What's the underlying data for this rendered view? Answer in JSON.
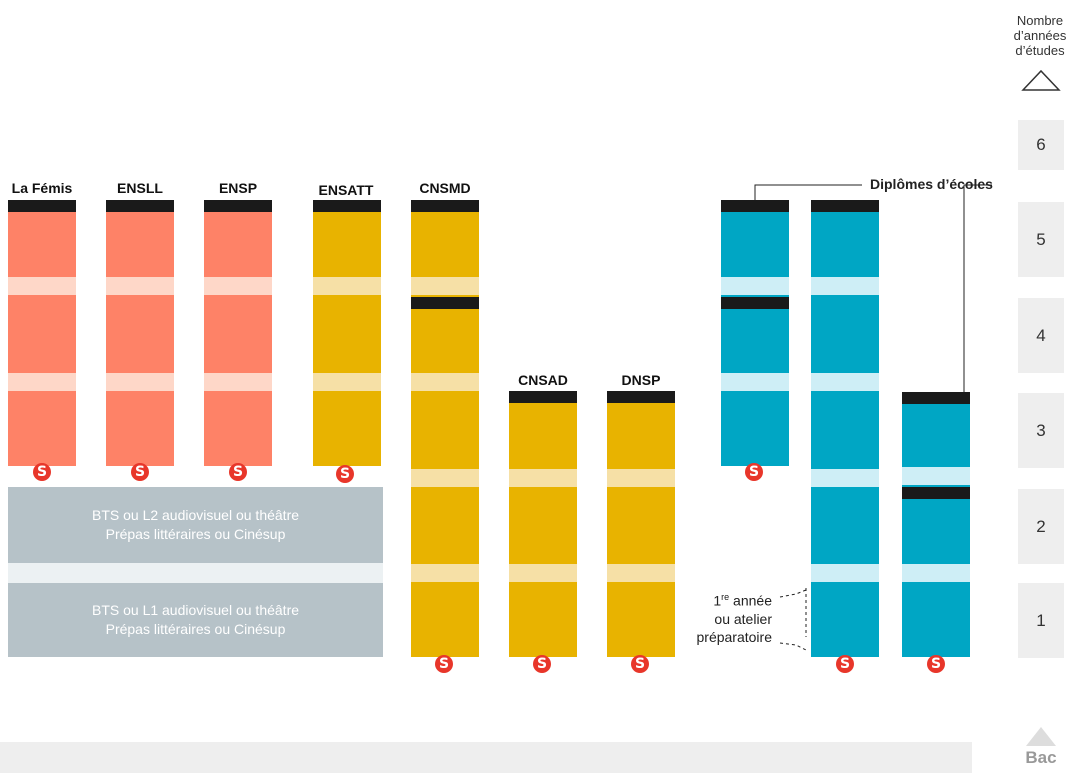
{
  "axis": {
    "title_line1": "Nombre",
    "title_line2": "d’années",
    "title_line3": "d’études",
    "years": [
      "6",
      "5",
      "4",
      "3",
      "2",
      "1"
    ],
    "bac_label": "Bac"
  },
  "colors": {
    "cinema": "#fe8267",
    "cinema_band": "#fed7c8",
    "theatre_music": "#e8b300",
    "theatre_music_band": "#f6e0a6",
    "universities": "#00a6c4",
    "universities_band": "#ceeef6",
    "diploma_bar": "#1a1a1a",
    "prep": "#b6c2c8",
    "badge": "#e8362a"
  },
  "schools": [
    {
      "label": "La Fémis"
    },
    {
      "label": "ENSLL"
    },
    {
      "label": "ENSP"
    },
    {
      "label": "ENSATT"
    },
    {
      "label": "CNSMD"
    },
    {
      "label": "CNSAD"
    },
    {
      "label": "DNSP"
    }
  ],
  "badge_letter": "S",
  "prep_blocks": [
    {
      "line1": "BTS ou L2 audiovisuel ou théâtre",
      "line2": "Prépas littéraires ou Cinésup"
    },
    {
      "line1": "BTS ou L1 audiovisuel ou théâtre",
      "line2": "Prépas littéraires ou Cinésup"
    }
  ],
  "legend": {
    "diplomes": "Diplômes d’écoles",
    "atelier_sup": "re",
    "atelier_line1_pre": "1",
    "atelier_line1_post": " année",
    "atelier_line2": "ou atelier",
    "atelier_line3": "préparatoire"
  }
}
